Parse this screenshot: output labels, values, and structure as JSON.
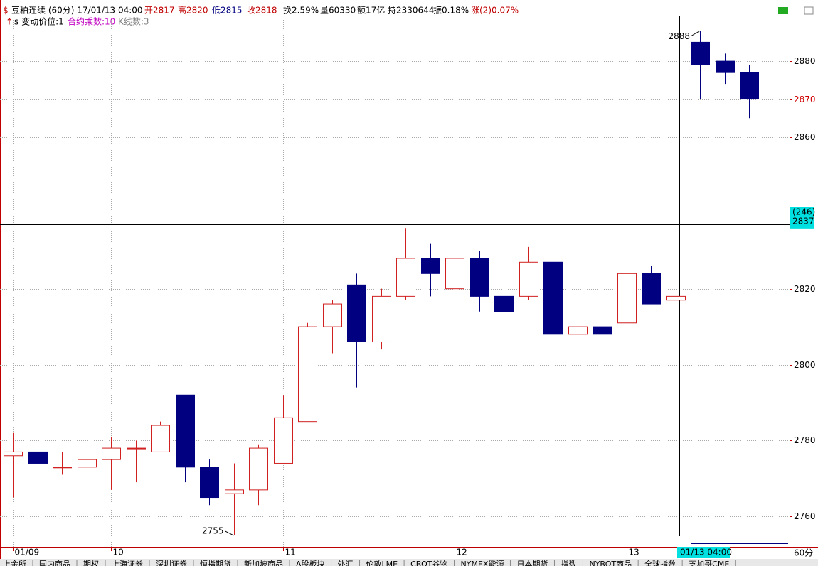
{
  "header": {
    "name": "豆粕连续 (60分) 17/01/13 04:00",
    "open": "开2817",
    "high": "高2820",
    "low": "低2815",
    "close": "收2818",
    "turnover": "换2.59%",
    "volume": "量60330",
    "amount": "额17亿",
    "position": "持2330644",
    "amplitude": "振0.18%",
    "change": "涨(2)0.07%",
    "tick": "s 变动价位:1",
    "multiplier": "合约乘数:10",
    "bars": "K线数:3"
  },
  "chart_data": {
    "type": "candlestick",
    "categories": [
      "01/09",
      null,
      null,
      null,
      "10",
      null,
      null,
      null,
      null,
      null,
      null,
      "11",
      null,
      null,
      null,
      null,
      null,
      null,
      "12",
      null,
      null,
      null,
      null,
      null,
      null,
      "13",
      null,
      null,
      null,
      null,
      null
    ],
    "open": [
      2776,
      2777,
      2773,
      2773,
      2775,
      2778,
      2777,
      2792,
      2773,
      2766,
      2767,
      2774,
      2785,
      2810,
      2821,
      2806,
      2818,
      2828,
      2820,
      2828,
      2818,
      2818,
      2827,
      2808,
      2810,
      2811,
      2824,
      2817,
      2885,
      2880,
      2877
    ],
    "high": [
      2782,
      2779,
      2777,
      2775,
      2781,
      2780,
      2785,
      2792,
      2775,
      2774,
      2779,
      2792,
      2811,
      2817,
      2824,
      2820,
      2836,
      2832,
      2832,
      2830,
      2822,
      2831,
      2828,
      2813,
      2815,
      2826,
      2826,
      2820,
      2888,
      2882,
      2879
    ],
    "low": [
      2765,
      2768,
      2771,
      2761,
      2767,
      2769,
      2777,
      2769,
      2763,
      2755,
      2763,
      2774,
      2785,
      2803,
      2794,
      2804,
      2817,
      2818,
      2818,
      2814,
      2813,
      2817,
      2806,
      2800,
      2806,
      2809,
      2816,
      2815,
      2870,
      2874,
      2865
    ],
    "close": [
      2777,
      2774,
      2773,
      2775,
      2778,
      2778,
      2784,
      2773,
      2765,
      2767,
      2778,
      2786,
      2810,
      2816,
      2806,
      2818,
      2828,
      2824,
      2828,
      2818,
      2814,
      2827,
      2808,
      2810,
      2808,
      2824,
      2816,
      2818,
      2879,
      2877,
      2870
    ],
    "up_color": "#d02020",
    "down_color": "#000080",
    "ylim": [
      2752,
      2892
    ],
    "yticks": [
      2760,
      2780,
      2800,
      2820,
      2860,
      2870,
      2880
    ],
    "grid": true,
    "max_label": 2888,
    "min_label": 2755,
    "crosshair": {
      "value": 2837,
      "count_label": "(246)",
      "x_label": "01/13 04:00"
    },
    "period_label": "60分"
  },
  "tabs": [
    "上金所",
    "国内商品",
    "期权",
    "上海证券",
    "深圳证券",
    "恒指期货",
    "新加坡商品",
    "A股板块",
    "外汇",
    "伦敦LME",
    "CBOT谷物",
    "NYMEX能源",
    "日本期货",
    "指数",
    "NYBOT商品",
    "全球指数",
    "芝加哥CME"
  ]
}
